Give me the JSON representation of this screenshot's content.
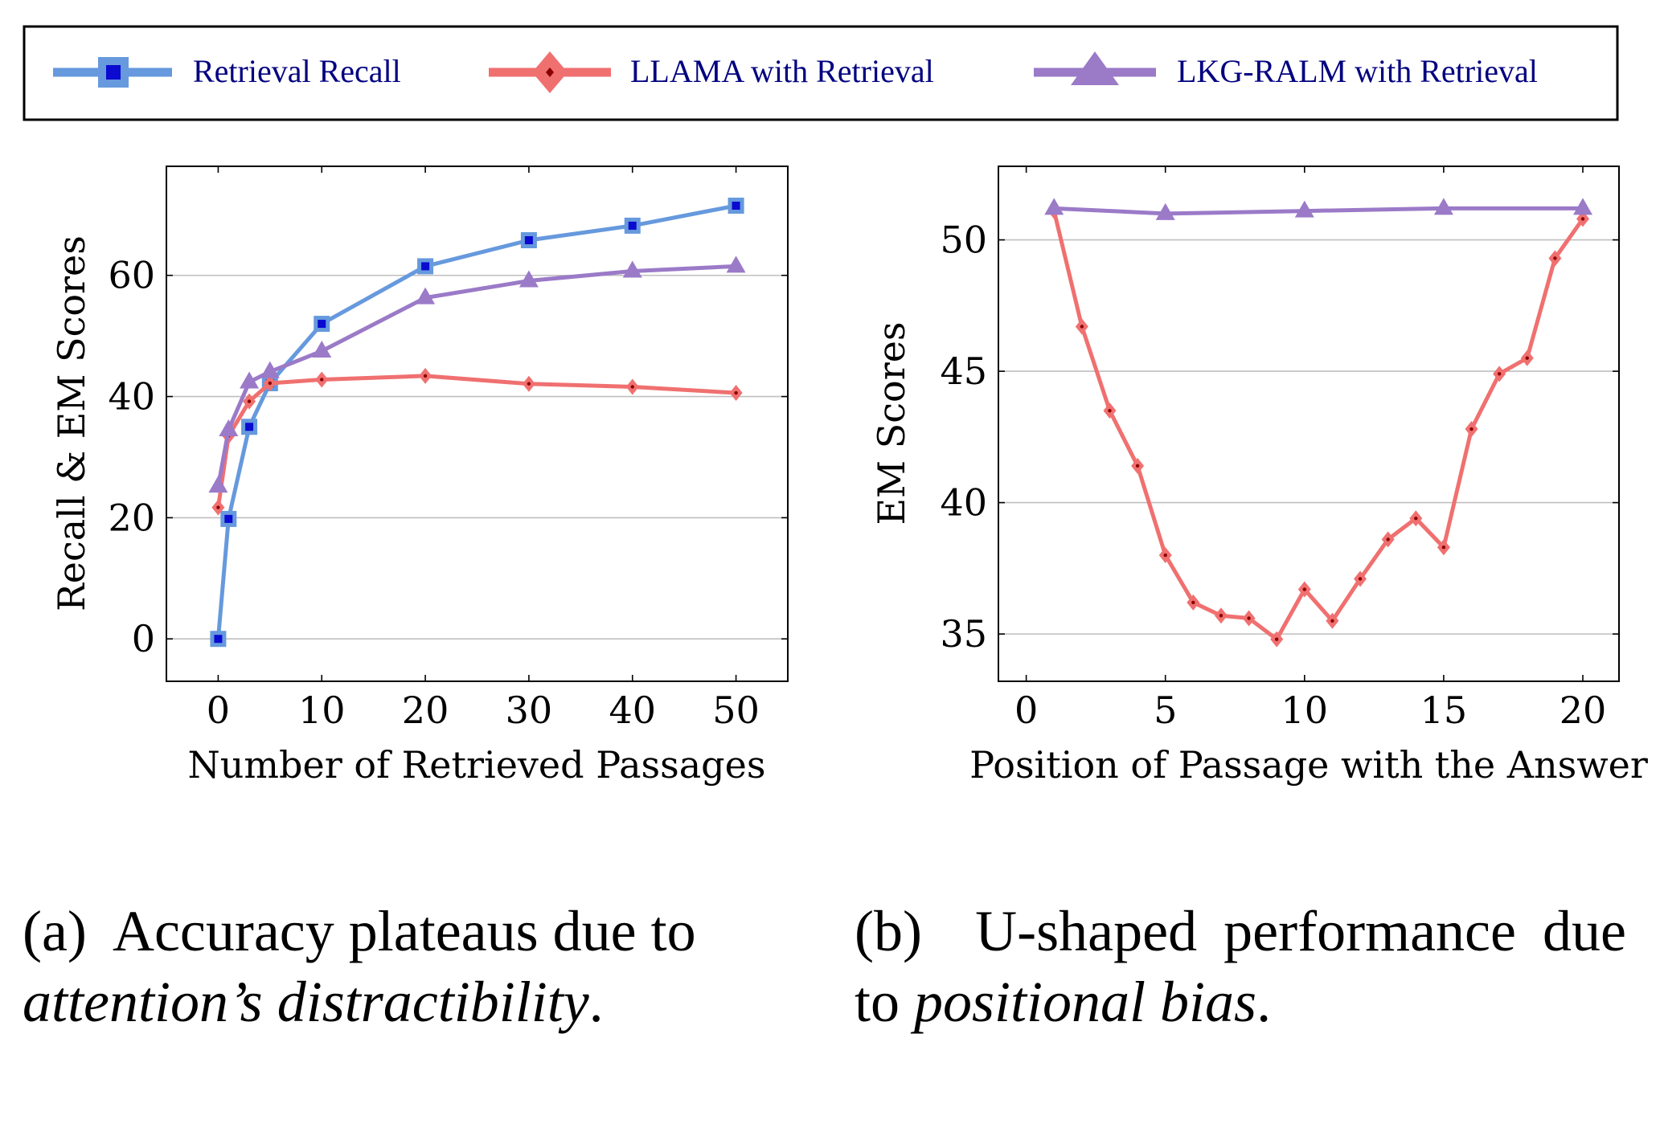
{
  "legend": [
    {
      "label": "Retrieval Recall",
      "color": "#6699dd",
      "marker": "square",
      "marker_fill": "#0a0ad0"
    },
    {
      "label": "LLAMA with Retrieval",
      "color": "#f07070",
      "marker": "diamond",
      "marker_fill": "#8b0000"
    },
    {
      "label": "LKG-RALM with Retrieval",
      "color": "#9b7ac8",
      "marker": "triangle",
      "marker_fill": "#5a3e8a"
    }
  ],
  "chart_data": [
    {
      "type": "line",
      "title": "",
      "xlabel": "Number of Retrieved Passages",
      "ylabel": "Recall & EM Scores",
      "xlim": [
        -5,
        55
      ],
      "ylim": [
        -7,
        78
      ],
      "xticks": [
        0,
        10,
        20,
        30,
        40,
        50
      ],
      "yticks": [
        0,
        20,
        40,
        60
      ],
      "grid": "horizontal",
      "series": [
        {
          "name": "Retrieval Recall",
          "x": [
            0,
            1,
            3,
            5,
            10,
            20,
            30,
            40,
            50
          ],
          "y": [
            0,
            19.8,
            35,
            42.2,
            52,
            61.5,
            65.8,
            68.2,
            71.5
          ]
        },
        {
          "name": "LLAMA with Retrieval",
          "x": [
            0,
            1,
            3,
            5,
            10,
            20,
            30,
            40,
            50
          ],
          "y": [
            21.7,
            33.5,
            39.2,
            42.2,
            42.8,
            43.4,
            42.1,
            41.6,
            40.6
          ]
        },
        {
          "name": "LKG-RALM with Retrieval",
          "x": [
            0,
            1,
            3,
            5,
            10,
            20,
            30,
            40,
            50
          ],
          "y": [
            25.2,
            34.5,
            42.4,
            44.1,
            47.5,
            56.3,
            59.1,
            60.7,
            61.5
          ]
        }
      ]
    },
    {
      "type": "line",
      "title": "",
      "xlabel": "Position of Passage with the Answer",
      "ylabel": "EM Scores",
      "xlim": [
        -1,
        21.3
      ],
      "ylim": [
        33.2,
        52.8
      ],
      "xticks": [
        0,
        5,
        10,
        15,
        20
      ],
      "yticks": [
        35,
        40,
        45,
        50
      ],
      "grid": "horizontal",
      "series": [
        {
          "name": "LLAMA with Retrieval",
          "x": [
            1,
            2,
            3,
            4,
            5,
            6,
            7,
            8,
            9,
            10,
            11,
            12,
            13,
            14,
            15,
            16,
            17,
            18,
            19,
            20
          ],
          "y": [
            51.1,
            46.7,
            43.5,
            41.4,
            38,
            36.2,
            35.7,
            35.6,
            34.8,
            36.7,
            35.5,
            37.1,
            38.6,
            39.4,
            38.3,
            42.8,
            44.9,
            45.5,
            49.3,
            50.8
          ]
        },
        {
          "name": "LKG-RALM with Retrieval",
          "x": [
            1,
            5,
            10,
            15,
            20
          ],
          "y": [
            51.2,
            51,
            51.1,
            51.2,
            51.2
          ]
        }
      ]
    }
  ],
  "captions": {
    "a": {
      "prefix": "(a)",
      "text": "Accuracy plateaus due to",
      "italic": "attention’s distractibility",
      "suffix": "."
    },
    "b": {
      "prefix": "(b)",
      "text": "U-shaped performance due to",
      "italic": "positional bias",
      "suffix": "."
    }
  }
}
